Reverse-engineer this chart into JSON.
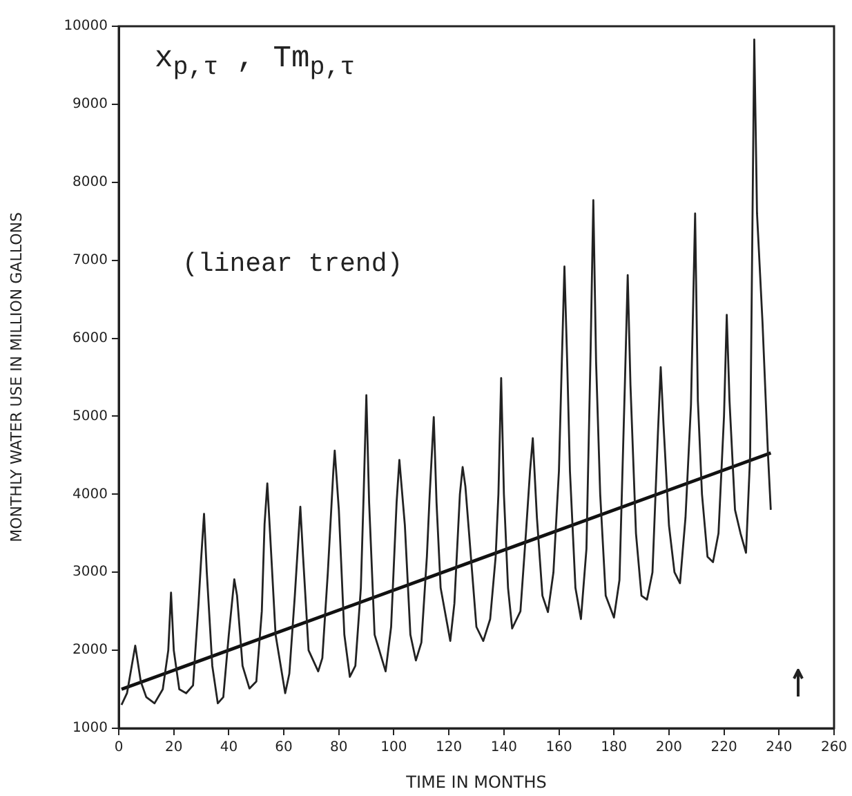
{
  "chart_data": {
    "type": "line",
    "xlabel": "TIME IN MONTHS",
    "ylabel": "MONTHLY WATER USE IN MILLION GALLONS",
    "annotations": [
      "x$_{p,τ}$ , Tm$_{p,τ}$",
      "(linear trend)"
    ],
    "xlim": [
      0,
      260
    ],
    "xticks": [
      0,
      20,
      40,
      60,
      80,
      100,
      120,
      140,
      160,
      180,
      200,
      220,
      240,
      260
    ],
    "ylim": [
      1000,
      10000
    ],
    "yticks": [
      1000,
      2000,
      3000,
      4000,
      5000,
      6000,
      7000,
      8000,
      9000,
      10000
    ],
    "grid": false,
    "legend": false,
    "marker": "none",
    "line_style": "solid",
    "series": [
      {
        "color": "#222222",
        "x": [
          1,
          3,
          6,
          8,
          10,
          13,
          16,
          18,
          19,
          20,
          22,
          24.5,
          27,
          29,
          30,
          31,
          32,
          34,
          36,
          38,
          40,
          42,
          43,
          45,
          47.5,
          50,
          52,
          53,
          54,
          55,
          57,
          60.5,
          62,
          64,
          66,
          67,
          69,
          72.5,
          74,
          76,
          78,
          78.5,
          80,
          82,
          84,
          86,
          88,
          89,
          90,
          91,
          93,
          97,
          99,
          101,
          102,
          104,
          106,
          108,
          110,
          112,
          113,
          114.5,
          115.5,
          117,
          120.5,
          122,
          124,
          125,
          126,
          128,
          130,
          132.5,
          135,
          137,
          138,
          139,
          140,
          141.5,
          143,
          146,
          148,
          149.5,
          150.5,
          152,
          154,
          156,
          158,
          160,
          161,
          162,
          163,
          164,
          166,
          168,
          170,
          171.5,
          172.5,
          173.5,
          175,
          177,
          180,
          182,
          184,
          185,
          186,
          188,
          190,
          192,
          194,
          196,
          197,
          198,
          200,
          202,
          204,
          206,
          208,
          209.5,
          210.5,
          212,
          214,
          216,
          218,
          220,
          221,
          222,
          224,
          226,
          228,
          229.5,
          231,
          232,
          234,
          236,
          237
        ],
        "values": [
          1300,
          1450,
          2060,
          1600,
          1400,
          1320,
          1500,
          2000,
          2740,
          2000,
          1500,
          1450,
          1550,
          2600,
          3200,
          3750,
          3000,
          1800,
          1320,
          1400,
          2200,
          2910,
          2700,
          1800,
          1510,
          1600,
          2500,
          3620,
          4140,
          3500,
          2200,
          1450,
          1700,
          2700,
          3840,
          3200,
          2000,
          1730,
          1900,
          3000,
          4300,
          4560,
          3800,
          2200,
          1660,
          1800,
          2800,
          3980,
          5270,
          3900,
          2200,
          1730,
          2300,
          3900,
          4440,
          3600,
          2200,
          1870,
          2100,
          3200,
          3980,
          4990,
          3900,
          2800,
          2120,
          2600,
          4000,
          4350,
          4100,
          3200,
          2300,
          2120,
          2400,
          3200,
          4000,
          5490,
          4000,
          2800,
          2280,
          2500,
          3500,
          4300,
          4720,
          3700,
          2700,
          2490,
          3000,
          4300,
          5630,
          6920,
          5700,
          4300,
          2800,
          2400,
          3300,
          5820,
          7770,
          5700,
          4000,
          2700,
          2420,
          2900,
          5450,
          6810,
          5400,
          3500,
          2700,
          2650,
          3000,
          4800,
          5630,
          4900,
          3600,
          3000,
          2860,
          3700,
          5150,
          7600,
          5200,
          4000,
          3200,
          3130,
          3500,
          5000,
          6300,
          5200,
          3800,
          3500,
          3250,
          4500,
          9830,
          7600,
          6200,
          4500,
          3800
        ]
      },
      {
        "type": "line",
        "color": "#111111",
        "x": [
          1,
          237
        ],
        "values": [
          1500,
          4530
        ]
      }
    ]
  }
}
